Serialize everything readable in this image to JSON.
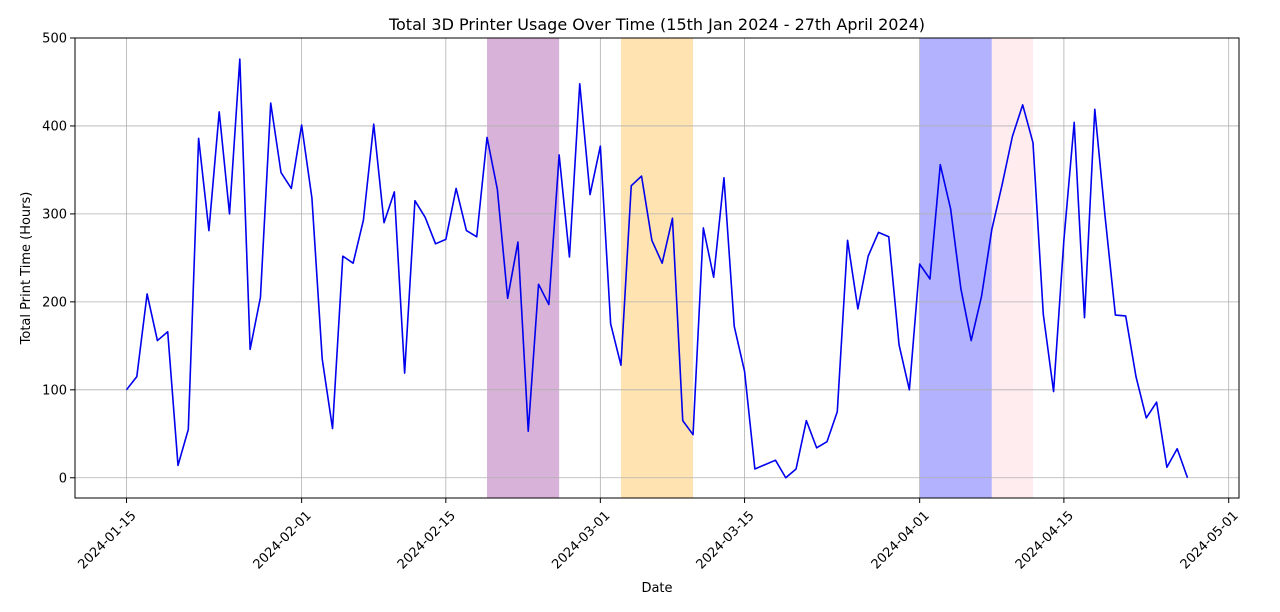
{
  "chart_data": {
    "type": "line",
    "title": "Total 3D Printer Usage Over Time (15th Jan 2024 - 27th April 2024)",
    "xlabel": "Date",
    "ylabel": "Total Print Time (Hours)",
    "xlim": [
      "2024-01-10",
      "2024-05-02"
    ],
    "ylim": [
      -23,
      500
    ],
    "x_ticks": [
      "2024-01-15",
      "2024-02-01",
      "2024-02-15",
      "2024-03-01",
      "2024-03-15",
      "2024-04-01",
      "2024-04-15",
      "2024-05-01"
    ],
    "y_ticks": [
      0,
      100,
      200,
      300,
      400,
      500
    ],
    "grid": true,
    "line_color": "#0000ee",
    "shaded_regions": [
      {
        "start": "2024-02-19",
        "end": "2024-02-26",
        "color": "#800080",
        "opacity": 0.3
      },
      {
        "start": "2024-03-03",
        "end": "2024-03-10",
        "color": "#ffa500",
        "opacity": 0.3
      },
      {
        "start": "2024-04-01",
        "end": "2024-04-08",
        "color": "#0000ff",
        "opacity": 0.3
      },
      {
        "start": "2024-04-08",
        "end": "2024-04-12",
        "color": "#ffc0cb",
        "opacity": 0.3
      }
    ],
    "series": [
      {
        "x": [
          "2024-01-15",
          "2024-01-16",
          "2024-01-17",
          "2024-01-18",
          "2024-01-19",
          "2024-01-20",
          "2024-01-21",
          "2024-01-22",
          "2024-01-23",
          "2024-01-24",
          "2024-01-25",
          "2024-01-26",
          "2024-01-27",
          "2024-01-28",
          "2024-01-29",
          "2024-01-30",
          "2024-01-31",
          "2024-02-01",
          "2024-02-02",
          "2024-02-03",
          "2024-02-04",
          "2024-02-05",
          "2024-02-06",
          "2024-02-07",
          "2024-02-08",
          "2024-02-09",
          "2024-02-10",
          "2024-02-11",
          "2024-02-12",
          "2024-02-13",
          "2024-02-14",
          "2024-02-15",
          "2024-02-16",
          "2024-02-17",
          "2024-02-18",
          "2024-02-19",
          "2024-02-20",
          "2024-02-21",
          "2024-02-22",
          "2024-02-23",
          "2024-02-24",
          "2024-02-25",
          "2024-02-26",
          "2024-02-27",
          "2024-02-28",
          "2024-02-29",
          "2024-03-01",
          "2024-03-02",
          "2024-03-03",
          "2024-03-04",
          "2024-03-05",
          "2024-03-06",
          "2024-03-07",
          "2024-03-08",
          "2024-03-09",
          "2024-03-10",
          "2024-03-11",
          "2024-03-12",
          "2024-03-13",
          "2024-03-14",
          "2024-03-15",
          "2024-03-16",
          "2024-03-17",
          "2024-03-18",
          "2024-03-19",
          "2024-03-20",
          "2024-03-21",
          "2024-03-22",
          "2024-03-23",
          "2024-03-24",
          "2024-03-25",
          "2024-03-26",
          "2024-03-27",
          "2024-03-28",
          "2024-03-29",
          "2024-03-30",
          "2024-03-31",
          "2024-04-01",
          "2024-04-02",
          "2024-04-03",
          "2024-04-04",
          "2024-04-05",
          "2024-04-06",
          "2024-04-07",
          "2024-04-08",
          "2024-04-09",
          "2024-04-10",
          "2024-04-11",
          "2024-04-12",
          "2024-04-13",
          "2024-04-14",
          "2024-04-15",
          "2024-04-16",
          "2024-04-17",
          "2024-04-18",
          "2024-04-19",
          "2024-04-20",
          "2024-04-21",
          "2024-04-22",
          "2024-04-23",
          "2024-04-24",
          "2024-04-25",
          "2024-04-26",
          "2024-04-27"
        ],
        "values": [
          100,
          115,
          209,
          156,
          166,
          14,
          55,
          386,
          281,
          416,
          300,
          476,
          146,
          205,
          426,
          347,
          329,
          401,
          318,
          135,
          56,
          252,
          244,
          293,
          402,
          290,
          325,
          119,
          315,
          296,
          266,
          271,
          329,
          281,
          274,
          387,
          328,
          204,
          268,
          53,
          220,
          197,
          367,
          251,
          448,
          322,
          377,
          175,
          128,
          332,
          343,
          270,
          244,
          295,
          65,
          49,
          284,
          228,
          341,
          172,
          121,
          10,
          15,
          20,
          0,
          10,
          65,
          34,
          41,
          75,
          270,
          192,
          252,
          279,
          274,
          151,
          100,
          243,
          226,
          356,
          306,
          215,
          156,
          206,
          282,
          333,
          388,
          424,
          381,
          186,
          98,
          270,
          404,
          182,
          419,
          297,
          185,
          184,
          115,
          68,
          86,
          12,
          33,
          0
        ]
      }
    ]
  }
}
